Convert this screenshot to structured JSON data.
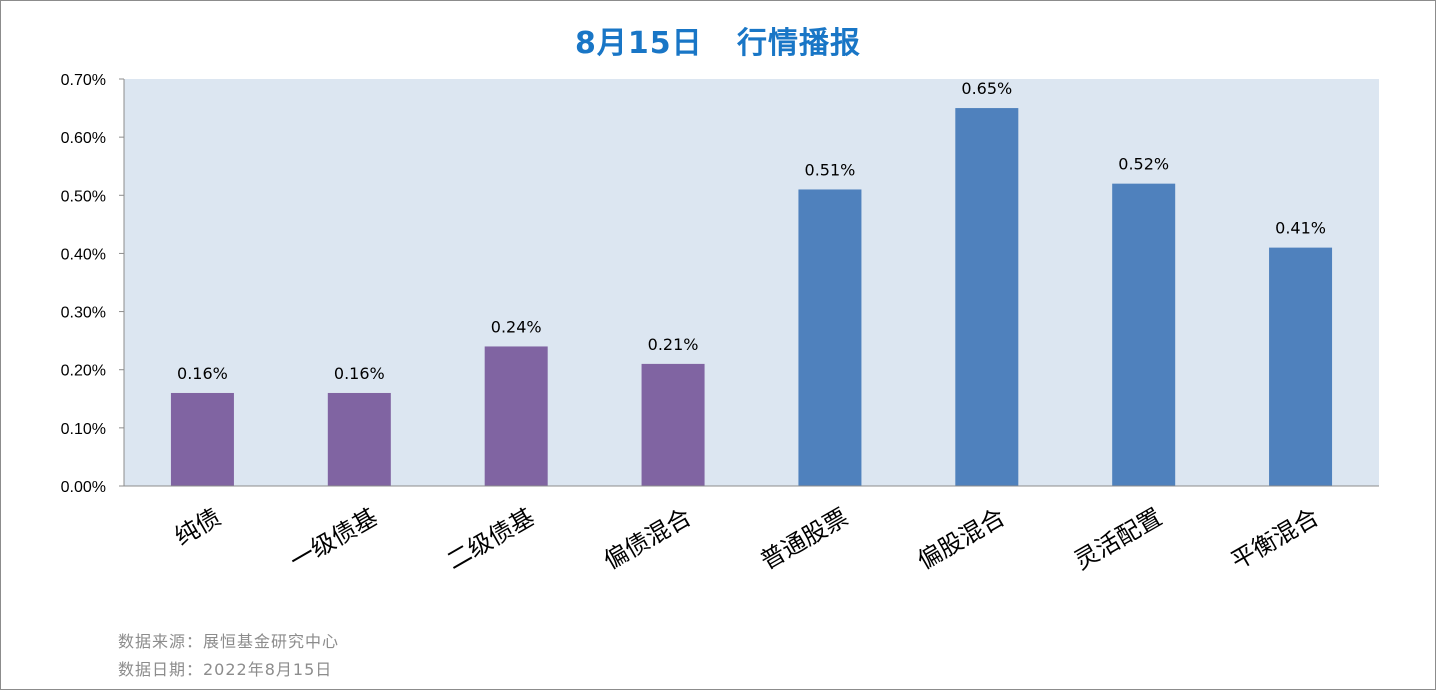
{
  "chart_data": {
    "type": "bar",
    "title": "8月15日   行情播报",
    "categories": [
      "纯债",
      "一级债基",
      "二级债基",
      "偏债混合",
      "普通股票",
      "偏股混合",
      "灵活配置",
      "平衡混合"
    ],
    "values": [
      0.16,
      0.16,
      0.24,
      0.21,
      0.51,
      0.65,
      0.52,
      0.41
    ],
    "value_labels": [
      "0.16%",
      "0.16%",
      "0.24%",
      "0.21%",
      "0.51%",
      "0.65%",
      "0.52%",
      "0.41%"
    ],
    "ylim": [
      0,
      0.7
    ],
    "yticks": [
      "0.00%",
      "0.10%",
      "0.20%",
      "0.30%",
      "0.40%",
      "0.50%",
      "0.60%",
      "0.70%"
    ],
    "grid": false,
    "xlabel": "",
    "ylabel": "",
    "colors": {
      "bond_bars": "#8064a2",
      "equity_bars": "#4f81bd",
      "plot_background": "#dce6f1",
      "title": "#1976c6",
      "source_text": "#8c8c8c"
    },
    "bar_color_groups": [
      "bond",
      "bond",
      "bond",
      "bond",
      "equity",
      "equity",
      "equity",
      "equity"
    ]
  },
  "footer": {
    "source": "数据来源：展恒基金研究中心",
    "date": "数据日期：2022年8月15日"
  }
}
